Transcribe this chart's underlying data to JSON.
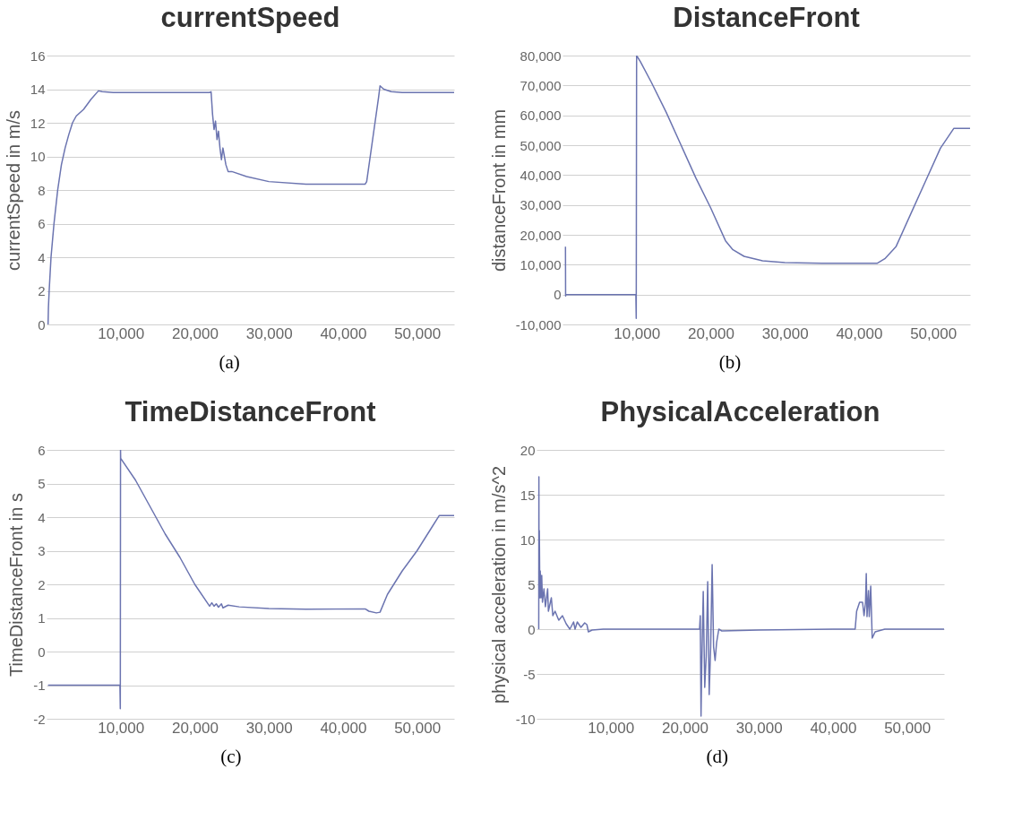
{
  "chart_data": [
    {
      "type": "line",
      "title": "currentSpeed",
      "ylabel": "currentSpeed in m/s",
      "annotations": [
        "(a)"
      ],
      "grid": "y",
      "xlim": [
        0,
        55000
      ],
      "ylim": [
        0,
        16
      ],
      "xticks": [
        {
          "value": 10000,
          "label": "10,000"
        },
        {
          "value": 20000,
          "label": "20,000"
        },
        {
          "value": 30000,
          "label": "30,000"
        },
        {
          "value": 40000,
          "label": "40,000"
        },
        {
          "value": 50000,
          "label": "50,000"
        }
      ],
      "yticks": [
        0,
        2,
        4,
        6,
        8,
        10,
        12,
        14,
        16
      ],
      "series": [
        {
          "color": "#6b74b0",
          "x": [
            200,
            250,
            350,
            600,
            1000,
            1500,
            2000,
            2500,
            3000,
            3500,
            4000,
            5000,
            6000,
            7000,
            7500,
            9000,
            15000,
            22000,
            22200,
            22400,
            22600,
            22800,
            23000,
            23200,
            23400,
            23600,
            23800,
            24200,
            24500,
            25000,
            27000,
            30000,
            35000,
            43000,
            43200,
            44000,
            44800,
            45000,
            45500,
            46500,
            48000,
            55000
          ],
          "values": [
            0,
            1,
            2,
            4,
            6,
            8,
            9.5,
            10.5,
            11.3,
            12,
            12.4,
            12.8,
            13.4,
            13.9,
            13.85,
            13.8,
            13.8,
            13.8,
            13.85,
            12.5,
            11.6,
            12.1,
            11,
            11.5,
            10.5,
            9.8,
            10.5,
            9.5,
            9.1,
            9.1,
            8.8,
            8.5,
            8.35,
            8.35,
            8.5,
            11,
            13.5,
            14.2,
            14,
            13.85,
            13.8,
            13.8
          ]
        }
      ]
    },
    {
      "type": "line",
      "title": "DistanceFront",
      "ylabel": "distanceFront in mm",
      "annotations": [
        "(b)"
      ],
      "grid": "y",
      "xlim": [
        0,
        55000
      ],
      "ylim": [
        -10000,
        80000
      ],
      "xticks": [
        {
          "value": 10000,
          "label": "10,000"
        },
        {
          "value": 20000,
          "label": "20,000"
        },
        {
          "value": 30000,
          "label": "30,000"
        },
        {
          "value": 40000,
          "label": "40,000"
        },
        {
          "value": 50000,
          "label": "50,000"
        }
      ],
      "yticks": [
        {
          "value": -10000,
          "label": "-10,000"
        },
        0,
        {
          "value": 10000,
          "label": "10,000"
        },
        {
          "value": 20000,
          "label": "20,000"
        },
        {
          "value": 30000,
          "label": "30,000"
        },
        {
          "value": 40000,
          "label": "40,000"
        },
        {
          "value": 50000,
          "label": "50,000"
        },
        {
          "value": 60000,
          "label": "60,000"
        },
        {
          "value": 70000,
          "label": "70,000"
        },
        {
          "value": 80000,
          "label": "80,000"
        }
      ],
      "series": [
        {
          "color": "#6b74b0",
          "x": [
            400,
            420,
            450,
            9900,
            9950,
            10000,
            10500,
            12000,
            14000,
            16000,
            18000,
            20000,
            22000,
            23000,
            24500,
            27000,
            30000,
            35000,
            42500,
            43500,
            45000,
            47000,
            49000,
            51000,
            52800,
            55000
          ],
          "values": [
            16000,
            -500,
            0,
            0,
            -8000,
            80000,
            78000,
            71000,
            61000,
            50000,
            39000,
            29000,
            18000,
            15000,
            12800,
            11300,
            10700,
            10500,
            10500,
            12000,
            16000,
            27000,
            38000,
            49000,
            55600,
            55600
          ]
        }
      ]
    },
    {
      "type": "line",
      "title": "TimeDistanceFront",
      "ylabel": "TimeDistanceFront in s",
      "annotations": [
        "(c)"
      ],
      "grid": "y",
      "xlim": [
        0,
        55000
      ],
      "ylim": [
        -2,
        6
      ],
      "xticks": [
        {
          "value": 10000,
          "label": "10,000"
        },
        {
          "value": 20000,
          "label": "20,000"
        },
        {
          "value": 30000,
          "label": "30,000"
        },
        {
          "value": 40000,
          "label": "40,000"
        },
        {
          "value": 50000,
          "label": "50,000"
        }
      ],
      "yticks": [
        -2,
        -1,
        0,
        1,
        2,
        3,
        4,
        5,
        6
      ],
      "series": [
        {
          "color": "#6b74b0",
          "x": [
            200,
            9900,
            9950,
            9980,
            10000,
            12000,
            14000,
            16000,
            18000,
            20000,
            22000,
            22300,
            22600,
            22900,
            23200,
            23600,
            23800,
            24500,
            26000,
            30000,
            35000,
            43000,
            43500,
            44500,
            45000,
            46000,
            48000,
            50000,
            52000,
            53000,
            55000
          ],
          "values": [
            -1,
            -1,
            -1.7,
            6,
            5.75,
            5.1,
            4.3,
            3.5,
            2.8,
            2,
            1.35,
            1.45,
            1.35,
            1.42,
            1.32,
            1.42,
            1.3,
            1.38,
            1.33,
            1.28,
            1.26,
            1.27,
            1.2,
            1.15,
            1.17,
            1.7,
            2.4,
            3,
            3.7,
            4.05,
            4.05
          ]
        }
      ]
    },
    {
      "type": "line",
      "title": "PhysicalAcceleration",
      "ylabel": "physical acceleration in m/s^2",
      "annotations": [
        "(d)"
      ],
      "grid": "y",
      "xlim": [
        0,
        55000
      ],
      "ylim": [
        -10,
        20
      ],
      "xticks": [
        {
          "value": 10000,
          "label": "10,000"
        },
        {
          "value": 20000,
          "label": "20,000"
        },
        {
          "value": 30000,
          "label": "30,000"
        },
        {
          "value": 40000,
          "label": "40,000"
        },
        {
          "value": 50000,
          "label": "50,000"
        }
      ],
      "yticks": [
        -10,
        -5,
        0,
        5,
        10,
        15,
        20
      ],
      "series": [
        {
          "color": "#6b74b0",
          "x": [
            300,
            320,
            340,
            380,
            450,
            500,
            600,
            700,
            800,
            1000,
            1200,
            1500,
            1600,
            2000,
            2200,
            2500,
            3000,
            3500,
            4000,
            4500,
            5000,
            5200,
            5500,
            6000,
            6500,
            6800,
            7000,
            7500,
            9000,
            22000,
            22100,
            22200,
            22300,
            22500,
            22700,
            22900,
            23100,
            23300,
            23500,
            23700,
            23900,
            24100,
            24300,
            24600,
            25000,
            30000,
            40000,
            43000,
            43200,
            43600,
            44000,
            44200,
            44400,
            44500,
            44600,
            44800,
            44900,
            45000,
            45100,
            45300,
            45700,
            47000,
            55000
          ],
          "values": [
            0,
            17,
            4,
            11,
            3.5,
            6.5,
            3.5,
            6,
            3,
            4.5,
            2.5,
            4.5,
            2,
            3.5,
            1.5,
            2,
            1,
            1.5,
            0.6,
            0,
            0.8,
            0,
            0.8,
            0.2,
            0.7,
            0.5,
            -0.3,
            -0.1,
            0,
            0,
            1.5,
            -9.7,
            -4,
            4.2,
            -6.5,
            -3,
            5.3,
            -7.3,
            -2,
            7.2,
            -2,
            -3.5,
            -1.5,
            0,
            -0.2,
            -0.1,
            0,
            0,
            2,
            3,
            3,
            1.5,
            3,
            6.2,
            1.4,
            4.3,
            1.4,
            2.9,
            4.8,
            -1,
            -0.3,
            0,
            0
          ]
        }
      ]
    }
  ]
}
